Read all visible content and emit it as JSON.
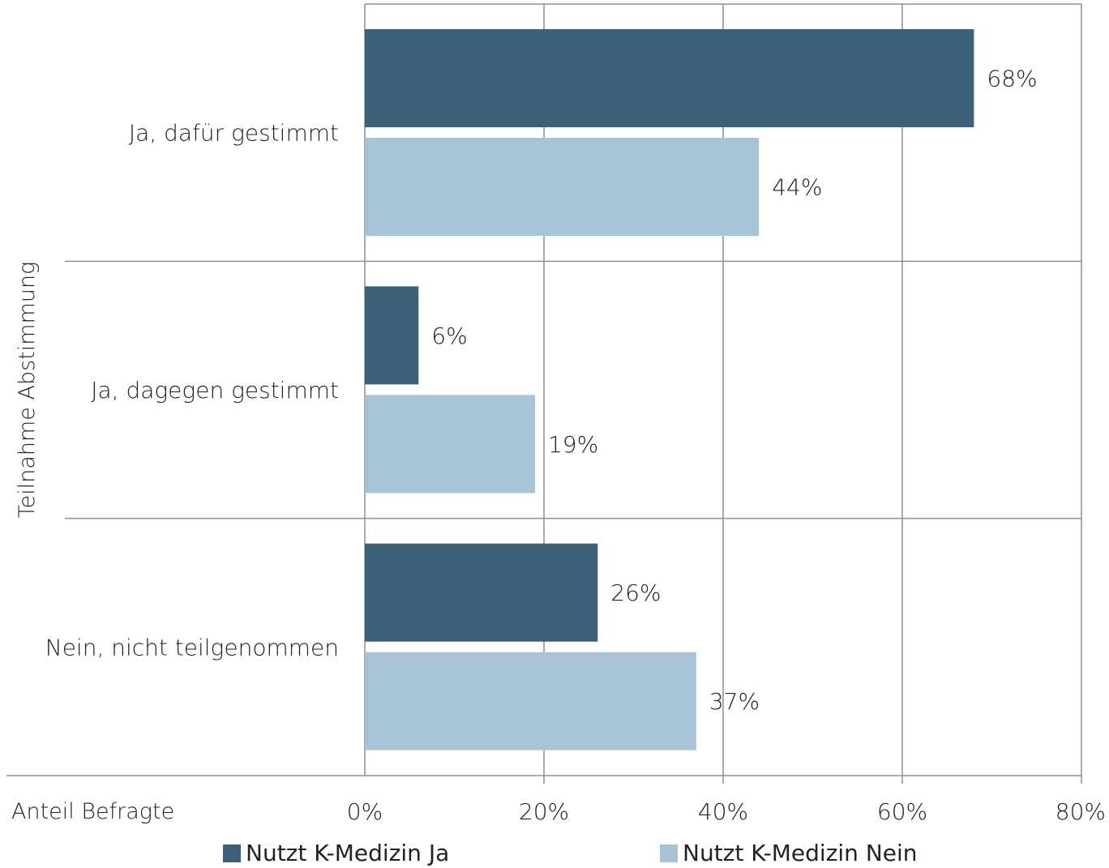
{
  "chart_data": {
    "type": "bar",
    "orientation": "horizontal",
    "y_axis_title": "Teilnahme Abstimmung",
    "x_axis_title": "Anteil Befragte",
    "categories": [
      "Ja, dafür gestimmt",
      "Ja, dagegen gestimmt",
      "Nein, nicht teilgenommen"
    ],
    "series": [
      {
        "name": "Nutzt K-Medizin Ja",
        "color": "#3c6079",
        "values": [
          68,
          6,
          26
        ],
        "labels": [
          "68%",
          "6%",
          "26%"
        ]
      },
      {
        "name": "Nutzt K-Medizin Nein",
        "color": "#a8c3d6",
        "values": [
          44,
          19,
          37
        ],
        "labels": [
          "44%",
          "19%",
          "37%"
        ]
      }
    ],
    "xlim": [
      0,
      80
    ],
    "xticks": [
      0,
      20,
      40,
      60,
      80
    ],
    "xtick_labels": [
      "0%",
      "20%",
      "40%",
      "60%",
      "80%"
    ],
    "grid": true,
    "legend_position": "bottom"
  }
}
